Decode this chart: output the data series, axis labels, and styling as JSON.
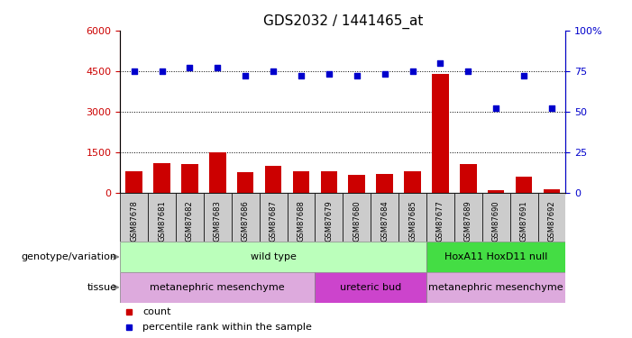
{
  "title": "GDS2032 / 1441465_at",
  "samples": [
    "GSM87678",
    "GSM87681",
    "GSM87682",
    "GSM87683",
    "GSM87686",
    "GSM87687",
    "GSM87688",
    "GSM87679",
    "GSM87680",
    "GSM87684",
    "GSM87685",
    "GSM87677",
    "GSM87689",
    "GSM87690",
    "GSM87691",
    "GSM87692"
  ],
  "counts": [
    800,
    1100,
    1050,
    1500,
    750,
    1000,
    800,
    800,
    650,
    700,
    800,
    4400,
    1050,
    80,
    600,
    120
  ],
  "percentiles": [
    75,
    75,
    77,
    77,
    72,
    75,
    72,
    73,
    72,
    73,
    75,
    80,
    75,
    52,
    72,
    52
  ],
  "ylim_left": [
    0,
    6000
  ],
  "ylim_right": [
    0,
    100
  ],
  "yticks_left": [
    0,
    1500,
    3000,
    4500,
    6000
  ],
  "yticks_right": [
    0,
    25,
    50,
    75,
    100
  ],
  "bar_color": "#cc0000",
  "dot_color": "#0000cc",
  "genotype_groups": [
    {
      "label": "wild type",
      "start": 0,
      "end": 11,
      "color": "#bbffbb"
    },
    {
      "label": "HoxA11 HoxD11 null",
      "start": 11,
      "end": 16,
      "color": "#44dd44"
    }
  ],
  "tissue_groups": [
    {
      "label": "metanephric mesenchyme",
      "start": 0,
      "end": 7,
      "color": "#ddaadd"
    },
    {
      "label": "ureteric bud",
      "start": 7,
      "end": 11,
      "color": "#cc44cc"
    },
    {
      "label": "metanephric mesenchyme",
      "start": 11,
      "end": 16,
      "color": "#ddaadd"
    }
  ],
  "legend_items": [
    {
      "label": "count",
      "color": "#cc0000"
    },
    {
      "label": "percentile rank within the sample",
      "color": "#0000cc"
    }
  ],
  "left_axis_color": "#cc0000",
  "right_axis_color": "#0000cc",
  "xtick_bg": "#cccccc"
}
